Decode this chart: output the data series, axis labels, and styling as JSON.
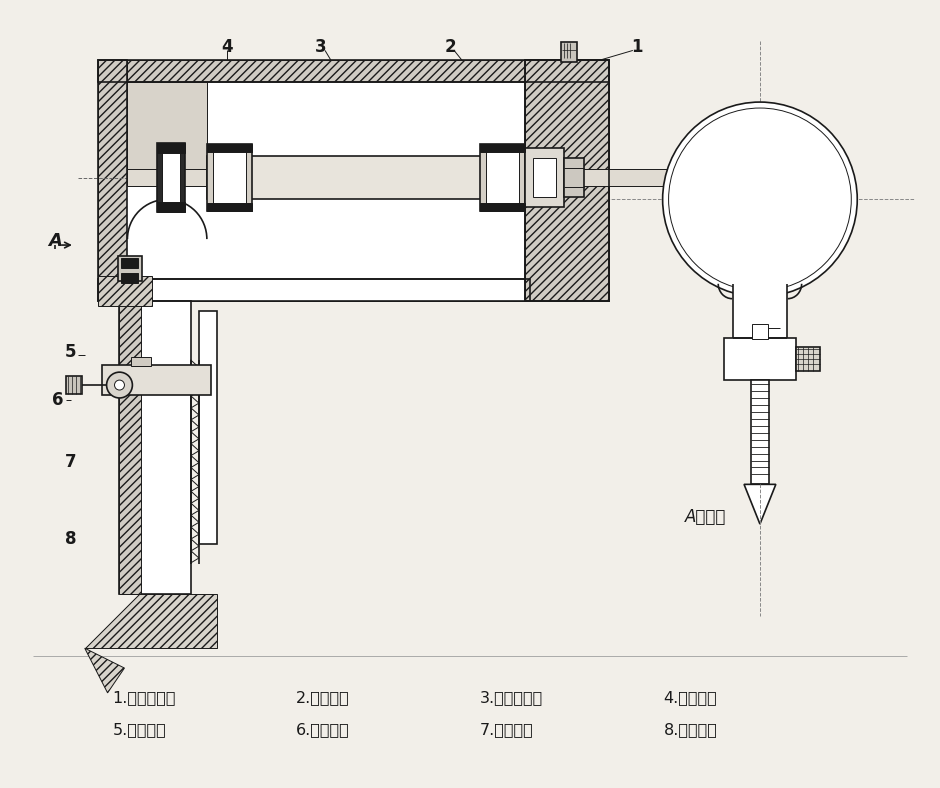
{
  "title": "",
  "bg_color": "#f2efe9",
  "line_color": "#1a1a1a",
  "legend_items": [
    "1.　电动机；",
    "2.　接套；",
    "3.　偏心轴；",
    "4.　连杆；",
    "5.　滑块；",
    "6.　销圈；",
    "7.　锅条；",
    "8.　护脚。"
  ],
  "note": "A向示意",
  "figsize": [
    9.4,
    7.88
  ],
  "dpi": 100
}
